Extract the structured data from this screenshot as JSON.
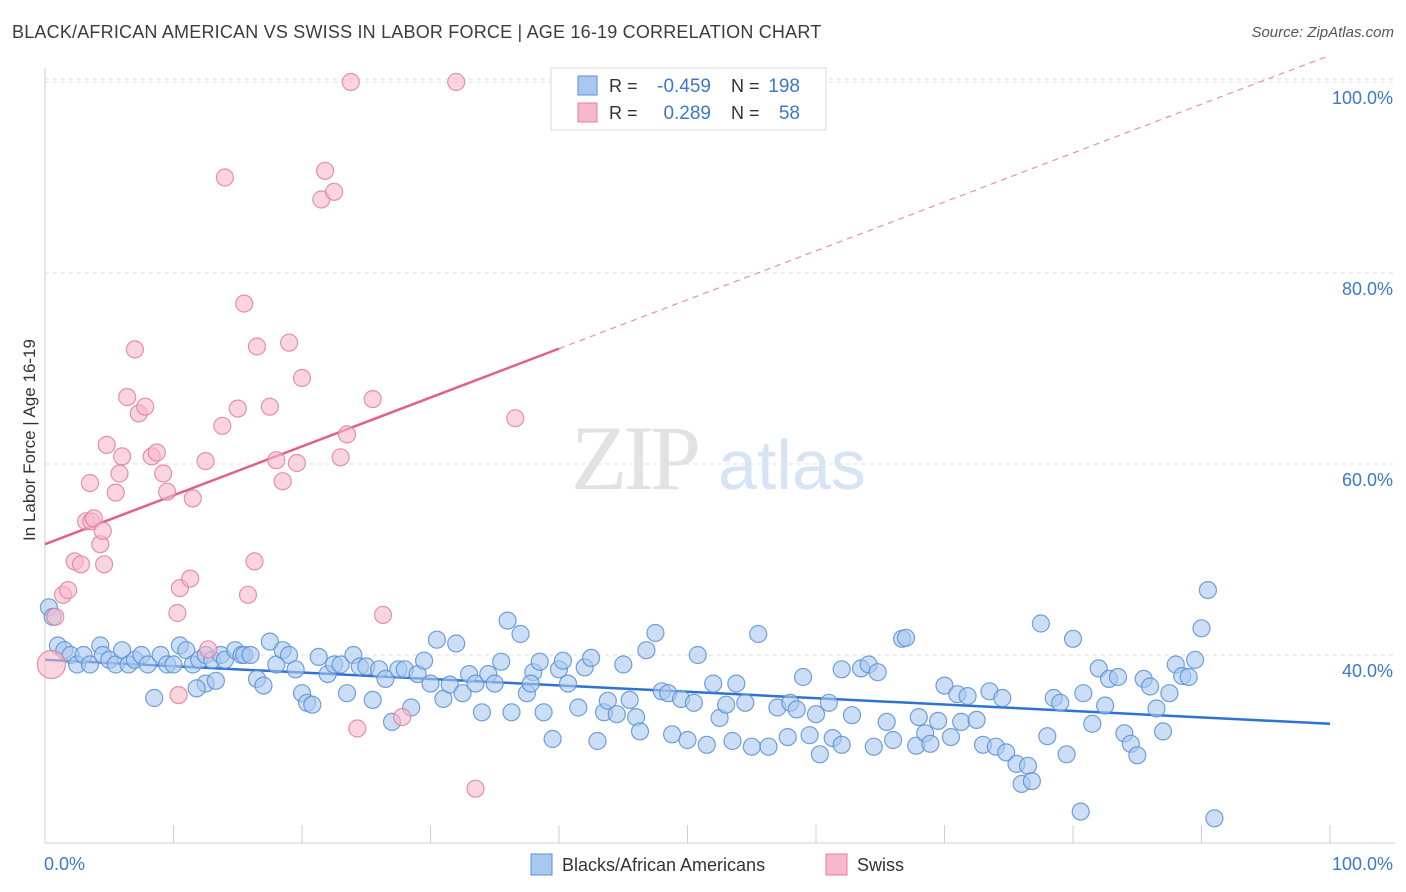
{
  "title": "BLACK/AFRICAN AMERICAN VS SWISS IN LABOR FORCE | AGE 16-19 CORRELATION CHART",
  "source": "Source: ZipAtlas.com",
  "watermark": {
    "zip": "ZIP",
    "atlas": "atlas"
  },
  "colors": {
    "blue_fill": "#a9c8ef",
    "blue_stroke": "#5b8fd6",
    "blue_line": "#2f73d0",
    "pink_fill": "#f6b9cc",
    "pink_stroke": "#e27f9f",
    "pink_line": "#e0608a",
    "tick_text": "#3d78c9",
    "grid": "#dcdcdc"
  },
  "legend": {
    "rows": [
      {
        "r_label": "R =",
        "r_value": "-0.459",
        "n_label": "N =",
        "n_value": "198"
      },
      {
        "r_label": "R =",
        "r_value": "0.289",
        "n_label": "N =",
        "n_value": "58"
      }
    ]
  },
  "bottom_legend": [
    "Blacks/African Americans",
    "Swiss"
  ],
  "chart_data": {
    "type": "scatter",
    "xlabel": "",
    "ylabel": "In Labor Force | Age 16-19",
    "xlim": [
      0,
      100
    ],
    "ylim": [
      20,
      104
    ],
    "x_tick_labels": [
      {
        "value": 0,
        "label": "0.0%"
      },
      {
        "value": 100,
        "label": "100.0%"
      }
    ],
    "y_tick_labels": [
      {
        "value": 40,
        "label": "40.0%"
      },
      {
        "value": 60,
        "label": "60.0%"
      },
      {
        "value": 80,
        "label": "80.0%"
      },
      {
        "value": 100,
        "label": "100.0%"
      }
    ],
    "grid": true,
    "legend_position": "top-center",
    "series": [
      {
        "name": "Blacks/African Americans",
        "color": "#a9c8ef",
        "trend": {
          "x": [
            0,
            100
          ],
          "y": [
            39.5,
            32.8
          ],
          "dashed_from": null
        },
        "points": [
          [
            0.3,
            45
          ],
          [
            0.6,
            44
          ],
          [
            1,
            41
          ],
          [
            1.5,
            40.5
          ],
          [
            2,
            40
          ],
          [
            2.5,
            39
          ],
          [
            3,
            40
          ],
          [
            3.5,
            39
          ],
          [
            4.3,
            41
          ],
          [
            4.5,
            40
          ],
          [
            5,
            39.5
          ],
          [
            5.5,
            39
          ],
          [
            6,
            40.5
          ],
          [
            6.5,
            39
          ],
          [
            7,
            39.5
          ],
          [
            7.5,
            40
          ],
          [
            8,
            39
          ],
          [
            8.5,
            35.5
          ],
          [
            9,
            40
          ],
          [
            9.5,
            39
          ],
          [
            10,
            39
          ],
          [
            10.5,
            41
          ],
          [
            11,
            40.5
          ],
          [
            11.5,
            39
          ],
          [
            12,
            39.5
          ],
          [
            12.5,
            40
          ],
          [
            12.5,
            37
          ],
          [
            13,
            39.5
          ],
          [
            13.3,
            37.3
          ],
          [
            13.7,
            40
          ],
          [
            14,
            39.5
          ],
          [
            14.8,
            40.5
          ],
          [
            15.3,
            40
          ],
          [
            15.5,
            40
          ],
          [
            16,
            40
          ],
          [
            16.5,
            37.5
          ],
          [
            17,
            36.8
          ],
          [
            17.5,
            41.4
          ],
          [
            18,
            39
          ],
          [
            18.5,
            40.5
          ],
          [
            19,
            40
          ],
          [
            19.5,
            38.5
          ],
          [
            20,
            36
          ],
          [
            20.4,
            35
          ],
          [
            20.8,
            34.8
          ],
          [
            21.3,
            39.8
          ],
          [
            22,
            38
          ],
          [
            22.5,
            39
          ],
          [
            23,
            39
          ],
          [
            23.5,
            36
          ],
          [
            24,
            40
          ],
          [
            24.5,
            38.8
          ],
          [
            25,
            38.8
          ],
          [
            25.5,
            35.3
          ],
          [
            26,
            38.5
          ],
          [
            26.5,
            37.5
          ],
          [
            27,
            33
          ],
          [
            27.5,
            38.5
          ],
          [
            28,
            38.5
          ],
          [
            28.5,
            34.5
          ],
          [
            29,
            38
          ],
          [
            29.5,
            39.4
          ],
          [
            30,
            37
          ],
          [
            30.5,
            41.6
          ],
          [
            31,
            35.4
          ],
          [
            31.5,
            36.9
          ],
          [
            32,
            41.2
          ],
          [
            32.5,
            36
          ],
          [
            33,
            38
          ],
          [
            33.5,
            37
          ],
          [
            34,
            34
          ],
          [
            34.5,
            38
          ],
          [
            35,
            37
          ],
          [
            35.5,
            39.3
          ],
          [
            36,
            43.6
          ],
          [
            36.3,
            34
          ],
          [
            37,
            42.2
          ],
          [
            37.5,
            36
          ],
          [
            38,
            38.2
          ],
          [
            38.5,
            39.3
          ],
          [
            38.8,
            34
          ],
          [
            39.5,
            31.2
          ],
          [
            40,
            38.5
          ],
          [
            40.3,
            39.4
          ],
          [
            40.7,
            37
          ],
          [
            41.5,
            34.5
          ],
          [
            42,
            38.7
          ],
          [
            42.5,
            39.7
          ],
          [
            43,
            31
          ],
          [
            43.5,
            34
          ],
          [
            43.8,
            35.2
          ],
          [
            44.5,
            33.8
          ],
          [
            45,
            39
          ],
          [
            45.5,
            35.3
          ],
          [
            46,
            33.5
          ],
          [
            46.3,
            32
          ],
          [
            46.8,
            40.5
          ],
          [
            47.5,
            42.3
          ],
          [
            48,
            36.2
          ],
          [
            48.5,
            36
          ],
          [
            48.8,
            31.7
          ],
          [
            49.5,
            35.4
          ],
          [
            50,
            31.1
          ],
          [
            50.5,
            35
          ],
          [
            50.8,
            40
          ],
          [
            51.5,
            30.6
          ],
          [
            52,
            37
          ],
          [
            52.5,
            33.4
          ],
          [
            53,
            34.8
          ],
          [
            53.5,
            31
          ],
          [
            53.8,
            37
          ],
          [
            54.5,
            35
          ],
          [
            55,
            30.4
          ],
          [
            55.5,
            42.2
          ],
          [
            56.3,
            30.4
          ],
          [
            57,
            34.5
          ],
          [
            57.8,
            31.4
          ],
          [
            58,
            35
          ],
          [
            58.5,
            34.3
          ],
          [
            59,
            37.7
          ],
          [
            59.5,
            31.6
          ],
          [
            60,
            33.8
          ],
          [
            60.3,
            29.6
          ],
          [
            61,
            35
          ],
          [
            61.3,
            31.3
          ],
          [
            62,
            30.6
          ],
          [
            62.8,
            33.7
          ],
          [
            63.5,
            38.6
          ],
          [
            64.1,
            39
          ],
          [
            64.5,
            30.4
          ],
          [
            64.8,
            38.2
          ],
          [
            65.5,
            33
          ],
          [
            66,
            31.1
          ],
          [
            66.7,
            41.7
          ],
          [
            67,
            41.8
          ],
          [
            67.8,
            30.5
          ],
          [
            68,
            33.5
          ],
          [
            68.5,
            31.8
          ],
          [
            68.9,
            30.7
          ],
          [
            69.5,
            33.1
          ],
          [
            70,
            36.8
          ],
          [
            70.5,
            31.4
          ],
          [
            71,
            35.9
          ],
          [
            71.3,
            33
          ],
          [
            71.8,
            35.7
          ],
          [
            72.5,
            33.2
          ],
          [
            73,
            30.6
          ],
          [
            73.5,
            36.2
          ],
          [
            74,
            30.4
          ],
          [
            74.5,
            35.5
          ],
          [
            74.8,
            29.8
          ],
          [
            75.6,
            28.6
          ],
          [
            76,
            26.5
          ],
          [
            76.5,
            28.4
          ],
          [
            76.8,
            26.8
          ],
          [
            77.5,
            43.3
          ],
          [
            78,
            31.5
          ],
          [
            78.5,
            35.5
          ],
          [
            79,
            35
          ],
          [
            79.5,
            29.6
          ],
          [
            80,
            41.7
          ],
          [
            80.6,
            23.6
          ],
          [
            80.8,
            36
          ],
          [
            81.5,
            32.8
          ],
          [
            82,
            38.6
          ],
          [
            82.5,
            34.7
          ],
          [
            82.8,
            37.5
          ],
          [
            83.5,
            37.7
          ],
          [
            84,
            31.8
          ],
          [
            84.5,
            30.7
          ],
          [
            85,
            29.5
          ],
          [
            85.5,
            37.5
          ],
          [
            86,
            36.7
          ],
          [
            86.5,
            34.4
          ],
          [
            87,
            32
          ],
          [
            87.5,
            36
          ],
          [
            88,
            39
          ],
          [
            88.5,
            37.8
          ],
          [
            89,
            37.7
          ],
          [
            89.5,
            39.5
          ],
          [
            90,
            42.8
          ],
          [
            90.5,
            46.8
          ],
          [
            91,
            22.9
          ],
          [
            62,
            38.5
          ],
          [
            37.8,
            37
          ],
          [
            11.8,
            36.5
          ]
        ]
      },
      {
        "name": "Swiss",
        "color": "#f6b9cc",
        "trend": {
          "x": [
            0,
            100
          ],
          "y": [
            51.6,
            102.8
          ],
          "dashed_from": 40
        },
        "points": [
          [
            0.5,
            39
          ],
          [
            0.8,
            44
          ],
          [
            1.4,
            46.3
          ],
          [
            1.8,
            46.8
          ],
          [
            2.3,
            49.8
          ],
          [
            2.8,
            49.5
          ],
          [
            3.2,
            54
          ],
          [
            3.5,
            58
          ],
          [
            3.6,
            54
          ],
          [
            3.8,
            54.3
          ],
          [
            4.3,
            51.6
          ],
          [
            4.5,
            53
          ],
          [
            4.6,
            49.5
          ],
          [
            4.8,
            62
          ],
          [
            5.5,
            57
          ],
          [
            5.8,
            59
          ],
          [
            6,
            60.8
          ],
          [
            6.4,
            67
          ],
          [
            7,
            72
          ],
          [
            7.3,
            65.3
          ],
          [
            7.8,
            66
          ],
          [
            8.3,
            60.8
          ],
          [
            8.7,
            61.2
          ],
          [
            9.2,
            59
          ],
          [
            9.5,
            57.1
          ],
          [
            10.3,
            44.4
          ],
          [
            10.4,
            35.8
          ],
          [
            10.5,
            47
          ],
          [
            11.3,
            48
          ],
          [
            11.5,
            56.4
          ],
          [
            12.5,
            60.3
          ],
          [
            12.7,
            40.6
          ],
          [
            13.8,
            64
          ],
          [
            14,
            90
          ],
          [
            15,
            65.8
          ],
          [
            15.5,
            76.8
          ],
          [
            15.8,
            46.3
          ],
          [
            16.3,
            49.8
          ],
          [
            16.5,
            72.3
          ],
          [
            17.5,
            66
          ],
          [
            18,
            60.4
          ],
          [
            18.5,
            58.2
          ],
          [
            19,
            72.7
          ],
          [
            19.6,
            60.1
          ],
          [
            20,
            69
          ],
          [
            21.5,
            87.7
          ],
          [
            21.8,
            90.7
          ],
          [
            22.5,
            88.5
          ],
          [
            23,
            60.7
          ],
          [
            23.5,
            63.1
          ],
          [
            23.8,
            100
          ],
          [
            24.3,
            32.3
          ],
          [
            25.5,
            66.8
          ],
          [
            26.3,
            44.2
          ],
          [
            27.8,
            33.5
          ],
          [
            32,
            100
          ],
          [
            33.5,
            26
          ],
          [
            36.6,
            64.8
          ]
        ]
      }
    ]
  }
}
